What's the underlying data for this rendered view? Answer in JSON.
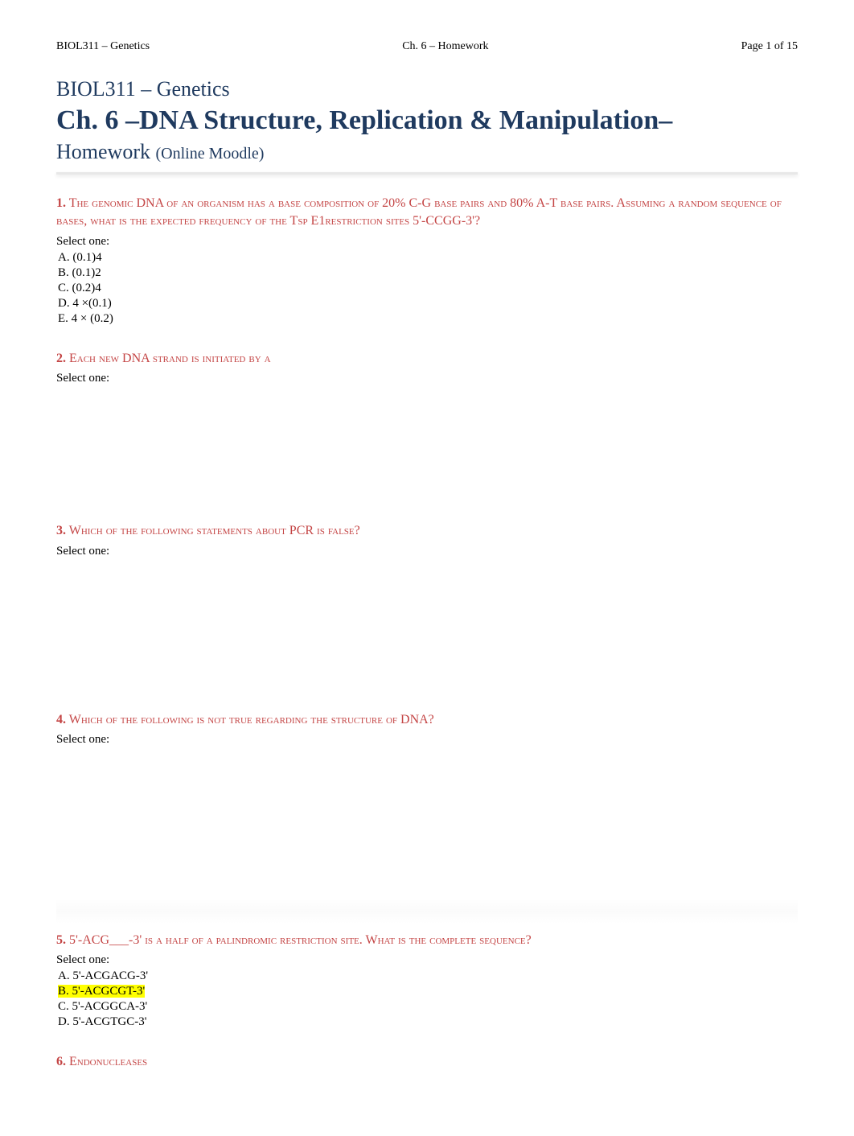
{
  "header": {
    "left": "BIOL311 – Genetics",
    "center": "Ch. 6 – Homework",
    "right": "Page 1 of 15"
  },
  "title": {
    "course": "BIOL311 – Genetics",
    "chapter": "Ch. 6 –DNA Structure, Replication & Manipulation–",
    "subtitle_main": "Homework ",
    "subtitle_paren": "(Online Moodle)"
  },
  "colors": {
    "heading": "#1f3a5f",
    "question": "#c44545",
    "highlight": "#ffff00",
    "text": "#000000",
    "background": "#ffffff"
  },
  "questions": [
    {
      "number": "1.",
      "text": " The genomic DNA of an organism has a base composition of 20% C-G base pairs and 80% A-T base pairs. Assuming a random sequence of bases, what is the expected frequency of the Tsp E1restriction sites 5'-CCGG-3'?",
      "select_one": "Select one:",
      "options": [
        {
          "label": " A. (0.1)4",
          "highlighted": false
        },
        {
          "label": "B. (0.1)2",
          "highlighted": false
        },
        {
          "label": "C. (0.2)4",
          "highlighted": false
        },
        {
          "label": " D. 4 ×(0.1)",
          "highlighted": false
        },
        {
          "label": " E. 4 × (0.2)",
          "highlighted": false
        }
      ],
      "spacer_after": "none"
    },
    {
      "number": "2.",
      "text": " Each new DNA strand is initiated by a",
      "select_one": "Select one:",
      "options": [],
      "spacer_after": "medium"
    },
    {
      "number": "3.",
      "text": " Which of the following statements about PCR is false?",
      "select_one": "Select one:",
      "options": [],
      "spacer_after": "large"
    },
    {
      "number": "4.",
      "text": " Which of the following is not true regarding the structure of DNA?",
      "select_one": "Select one:",
      "options": [],
      "spacer_after": "large",
      "blur_after": true
    },
    {
      "number": "5.",
      "text": " 5'-ACG___-3' is a half of a palindromic restriction site. What is the complete sequence?",
      "select_one": "Select one:",
      "options": [
        {
          "label": "A. 5'-ACGACG-3'",
          "highlighted": false
        },
        {
          "label": "B. 5'-ACGCGT-3'",
          "highlighted": true
        },
        {
          "label": "C. 5'-ACGGCA-3'",
          "highlighted": false
        },
        {
          "label": "D. 5'-ACGTGC-3'",
          "highlighted": false
        }
      ],
      "spacer_after": "none"
    },
    {
      "number": "6.",
      "text": " Endonucleases",
      "select_one": "",
      "options": [],
      "spacer_after": "none"
    }
  ]
}
